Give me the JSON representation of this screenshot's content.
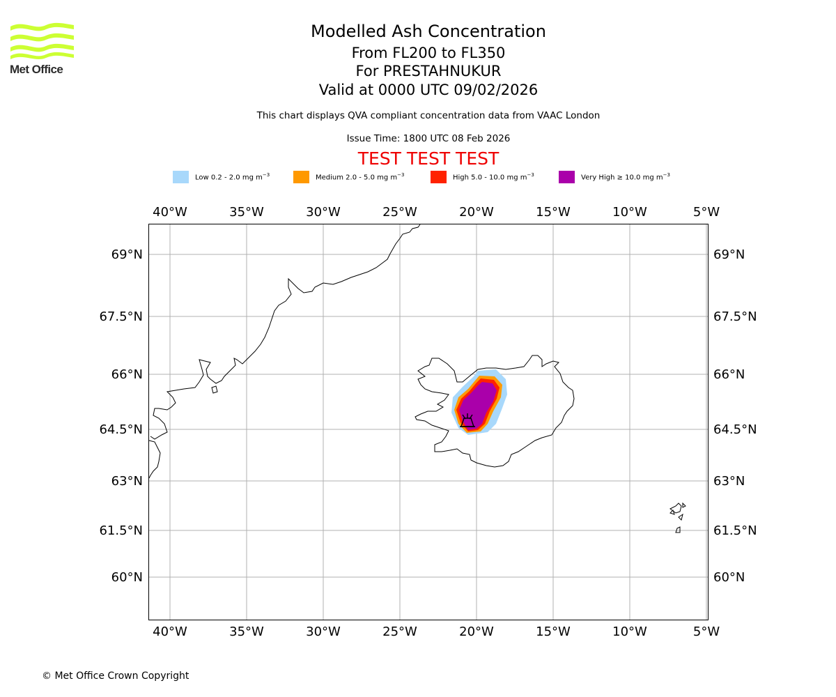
{
  "logo": {
    "text": "Met Office",
    "color": "#ccff33"
  },
  "title": {
    "main": "Modelled Ash Concentration",
    "levels": "From FL200 to FL350",
    "volcano": "For PRESTAHNUKUR",
    "valid": "Valid at 0000 UTC 09/02/2026"
  },
  "info": {
    "qva": "This chart displays QVA compliant concentration data from VAAC London",
    "issue": "Issue Time: 1800 UTC 08 Feb 2026",
    "test_banner": "TEST TEST TEST"
  },
  "legend": [
    {
      "label": "Low 0.2 - 2.0 mg m",
      "color": "#a8d8fb"
    },
    {
      "label": "Medium 2.0 - 5.0 mg m",
      "color": "#ff9900"
    },
    {
      "label": "High 5.0 - 10.0 mg m",
      "color": "#ff2200"
    },
    {
      "label": "Very High ≥ 10.0 mg m",
      "color": "#aa00aa"
    }
  ],
  "legend_unit_exponent": "−3",
  "map": {
    "lon_labels": [
      "40°W",
      "35°W",
      "30°W",
      "25°W",
      "20°W",
      "15°W",
      "10°W",
      "5°W"
    ],
    "lat_labels": [
      "69°N",
      "67.5°N",
      "66°N",
      "64.5°N",
      "63°N",
      "61.5°N",
      "60°N"
    ],
    "volcano_icon": "volcano-icon"
  },
  "copyright": "© Met Office Crown Copyright"
}
